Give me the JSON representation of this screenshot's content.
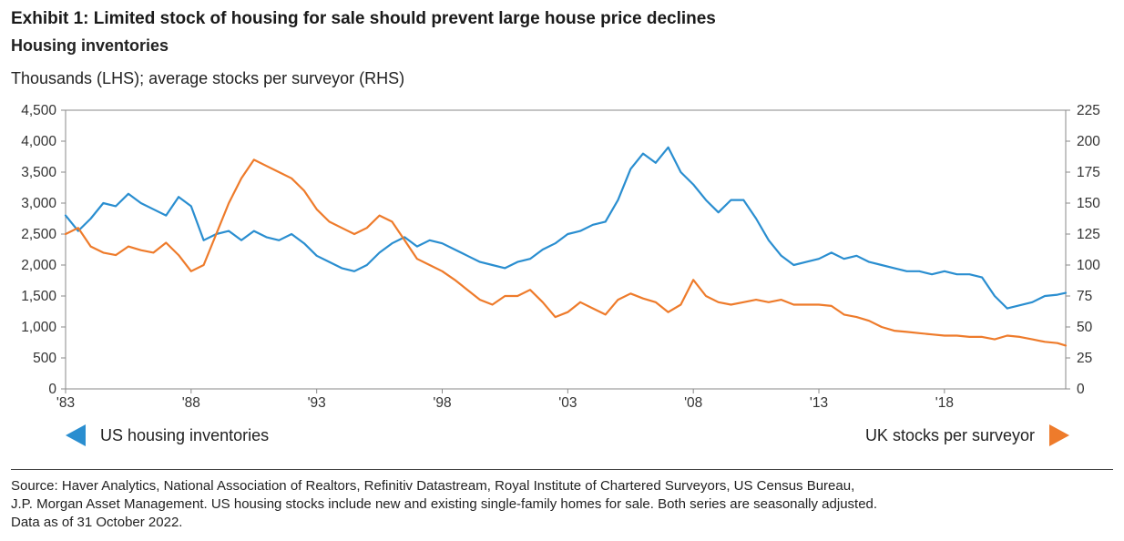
{
  "header": {
    "title": "Exhibit 1: Limited stock of housing for sale should prevent large house price declines",
    "subtitle": "Housing inventories",
    "units": "Thousands (LHS); average stocks per surveyor (RHS)"
  },
  "legend": {
    "left_label": "US housing inventories",
    "right_label": "UK stocks per surveyor"
  },
  "source": {
    "line1": "Source: Haver Analytics, National Association of Realtors, Refinitiv Datastream, Royal Institute of Chartered Surveyors, US Census Bureau,",
    "line2": "J.P. Morgan Asset Management. US housing stocks include new and existing single-family homes for sale. Both series are seasonally adjusted.",
    "line3": "Data as of 31 October 2022."
  },
  "chart_data": {
    "type": "line",
    "title": "Exhibit 1: Limited stock of housing for sale should prevent large house price declines",
    "subtitle": "Housing inventories",
    "xlabel": "",
    "ylabel": "Thousands (LHS); average stocks per surveyor (RHS)",
    "x_tick_labels": [
      "'83",
      "'88",
      "'93",
      "'98",
      "'03",
      "'08",
      "'13",
      "'18"
    ],
    "x_tick_years": [
      1983,
      1988,
      1993,
      1998,
      2003,
      2008,
      2013,
      2018
    ],
    "xlim": [
      1983.0,
      2022.83
    ],
    "y_left": {
      "lim": [
        0,
        4500
      ],
      "ticks": [
        0,
        500,
        1000,
        1500,
        2000,
        2500,
        3000,
        3500,
        4000,
        4500
      ],
      "tick_labels": [
        "0",
        "500",
        "1,000",
        "1,500",
        "2,000",
        "2,500",
        "3,000",
        "3,500",
        "4,000",
        "4,500"
      ]
    },
    "y_right": {
      "lim": [
        0,
        225
      ],
      "ticks": [
        0,
        25,
        50,
        75,
        100,
        125,
        150,
        175,
        200,
        225
      ],
      "tick_labels": [
        "0",
        "25",
        "50",
        "75",
        "100",
        "125",
        "150",
        "175",
        "200",
        "225"
      ]
    },
    "grid": false,
    "legend_placement": "bottom",
    "series": [
      {
        "name": "US housing inventories",
        "axis": "left",
        "color": "#2a8ed0",
        "x": [
          1983.0,
          1983.5,
          1984.0,
          1984.5,
          1985.0,
          1985.5,
          1986.0,
          1986.5,
          1987.0,
          1987.5,
          1988.0,
          1988.5,
          1989.0,
          1989.5,
          1990.0,
          1990.5,
          1991.0,
          1991.5,
          1992.0,
          1992.5,
          1993.0,
          1993.5,
          1994.0,
          1994.5,
          1995.0,
          1995.5,
          1996.0,
          1996.5,
          1997.0,
          1997.5,
          1998.0,
          1998.5,
          1999.0,
          1999.5,
          2000.0,
          2000.5,
          2001.0,
          2001.5,
          2002.0,
          2002.5,
          2003.0,
          2003.5,
          2004.0,
          2004.5,
          2005.0,
          2005.5,
          2006.0,
          2006.5,
          2007.0,
          2007.5,
          2008.0,
          2008.5,
          2009.0,
          2009.5,
          2010.0,
          2010.5,
          2011.0,
          2011.5,
          2012.0,
          2012.5,
          2013.0,
          2013.5,
          2014.0,
          2014.5,
          2015.0,
          2015.5,
          2016.0,
          2016.5,
          2017.0,
          2017.5,
          2018.0,
          2018.5,
          2019.0,
          2019.5,
          2020.0,
          2020.5,
          2021.0,
          2021.5,
          2022.0,
          2022.5,
          2022.83
        ],
        "values": [
          2800,
          2550,
          2750,
          3000,
          2950,
          3150,
          3000,
          2900,
          2800,
          3100,
          2950,
          2400,
          2500,
          2550,
          2400,
          2550,
          2450,
          2400,
          2500,
          2350,
          2150,
          2050,
          1950,
          1900,
          2000,
          2200,
          2350,
          2450,
          2300,
          2400,
          2350,
          2250,
          2150,
          2050,
          2000,
          1950,
          2050,
          2100,
          2250,
          2350,
          2500,
          2550,
          2650,
          2700,
          3050,
          3550,
          3800,
          3650,
          3900,
          3500,
          3300,
          3050,
          2850,
          3050,
          3050,
          2750,
          2400,
          2150,
          2000,
          2050,
          2100,
          2200,
          2100,
          2150,
          2050,
          2000,
          1950,
          1900,
          1900,
          1850,
          1900,
          1850,
          1850,
          1800,
          1500,
          1300,
          1350,
          1400,
          1500,
          1520,
          1550
        ]
      },
      {
        "name": "UK stocks per surveyor",
        "axis": "right",
        "color": "#ee7b2b",
        "x": [
          1983.0,
          1983.5,
          1984.0,
          1984.5,
          1985.0,
          1985.5,
          1986.0,
          1986.5,
          1987.0,
          1987.5,
          1988.0,
          1988.5,
          1989.0,
          1989.5,
          1990.0,
          1990.5,
          1991.0,
          1991.5,
          1992.0,
          1992.5,
          1993.0,
          1993.5,
          1994.0,
          1994.5,
          1995.0,
          1995.5,
          1996.0,
          1996.5,
          1997.0,
          1997.5,
          1998.0,
          1998.5,
          1999.0,
          1999.5,
          2000.0,
          2000.5,
          2001.0,
          2001.5,
          2002.0,
          2002.5,
          2003.0,
          2003.5,
          2004.0,
          2004.5,
          2005.0,
          2005.5,
          2006.0,
          2006.5,
          2007.0,
          2007.5,
          2008.0,
          2008.5,
          2009.0,
          2009.5,
          2010.0,
          2010.5,
          2011.0,
          2011.5,
          2012.0,
          2012.5,
          2013.0,
          2013.5,
          2014.0,
          2014.5,
          2015.0,
          2015.5,
          2016.0,
          2016.5,
          2017.0,
          2017.5,
          2018.0,
          2018.5,
          2019.0,
          2019.5,
          2020.0,
          2020.5,
          2021.0,
          2021.5,
          2022.0,
          2022.5,
          2022.83
        ],
        "values": [
          125,
          130,
          115,
          110,
          108,
          115,
          112,
          110,
          118,
          108,
          95,
          100,
          125,
          150,
          170,
          185,
          180,
          175,
          170,
          160,
          145,
          135,
          130,
          125,
          130,
          140,
          135,
          120,
          105,
          100,
          95,
          88,
          80,
          72,
          68,
          75,
          75,
          80,
          70,
          58,
          62,
          70,
          65,
          60,
          72,
          77,
          73,
          70,
          62,
          68,
          88,
          75,
          70,
          68,
          70,
          72,
          70,
          72,
          68,
          68,
          68,
          67,
          60,
          58,
          55,
          50,
          47,
          46,
          45,
          44,
          43,
          43,
          42,
          42,
          40,
          43,
          42,
          40,
          38,
          37,
          35
        ]
      }
    ]
  }
}
